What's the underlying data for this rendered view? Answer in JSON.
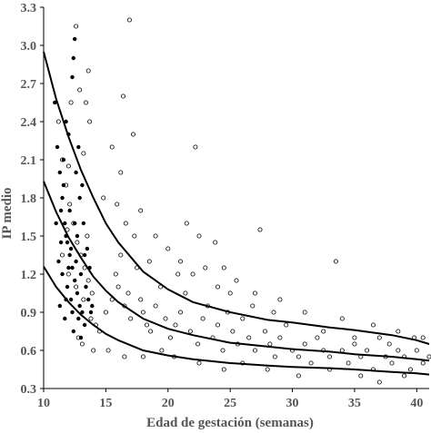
{
  "chart_data": {
    "type": "scatter",
    "title": "",
    "xlabel": "Edad de gestación (semanas)",
    "ylabel": "IP medio",
    "xlim": [
      10,
      41
    ],
    "ylim": [
      0.3,
      3.3
    ],
    "x_ticks": [
      10,
      15,
      20,
      25,
      30,
      35,
      40
    ],
    "y_ticks": [
      "0.3",
      "0.6",
      "0.9",
      "1.2",
      "1.5",
      "1.8",
      "2.1",
      "2.4",
      "2.7",
      "3.0",
      "3.3"
    ],
    "grid": false,
    "legend": "none",
    "series": [
      {
        "marker": "filled-circle",
        "color": "#000000",
        "points": [
          [
            10.9,
            2.55
          ],
          [
            11.1,
            2.2
          ],
          [
            11.3,
            2.0
          ],
          [
            11.5,
            1.8
          ],
          [
            11.7,
            1.6
          ],
          [
            11.9,
            1.45
          ],
          [
            12.1,
            1.35
          ],
          [
            12.3,
            1.25
          ],
          [
            12.5,
            1.15
          ],
          [
            12.7,
            1.05
          ],
          [
            12.9,
            0.95
          ],
          [
            13.1,
            0.9
          ],
          [
            12.4,
            2.9
          ],
          [
            12.5,
            3.05
          ],
          [
            12.3,
            2.75
          ],
          [
            11.8,
            2.4
          ],
          [
            12.0,
            2.3
          ],
          [
            11.6,
            1.9
          ],
          [
            11.4,
            1.7
          ],
          [
            11.8,
            1.5
          ],
          [
            12.2,
            1.4
          ],
          [
            12.6,
            1.3
          ],
          [
            13.0,
            1.2
          ],
          [
            13.4,
            1.1
          ],
          [
            11.2,
            1.3
          ],
          [
            11.5,
            1.2
          ],
          [
            11.9,
            1.1
          ],
          [
            12.2,
            1.0
          ],
          [
            12.8,
            0.85
          ],
          [
            13.3,
            0.8
          ],
          [
            13.6,
            1.0
          ],
          [
            13.8,
            0.9
          ],
          [
            13.5,
            1.4
          ],
          [
            13.2,
            1.6
          ],
          [
            12.9,
            1.8
          ],
          [
            12.6,
            2.0
          ],
          [
            12.8,
            2.2
          ],
          [
            13.1,
            1.9
          ],
          [
            11.3,
            0.95
          ],
          [
            11.7,
            0.85
          ],
          [
            12.4,
            0.75
          ],
          [
            13.0,
            0.7
          ],
          [
            11.0,
            1.6
          ],
          [
            11.4,
            1.45
          ],
          [
            12.0,
            1.25
          ],
          [
            12.7,
            1.5
          ],
          [
            13.3,
            1.35
          ],
          [
            13.7,
            1.25
          ],
          [
            12.1,
            1.7
          ],
          [
            11.6,
            2.1
          ],
          [
            12.5,
            1.6
          ],
          [
            13.9,
            0.95
          ],
          [
            11.8,
            1.0
          ],
          [
            12.3,
            0.9
          ]
        ]
      },
      {
        "marker": "open-circle",
        "color": "#000000",
        "points": [
          [
            11.2,
            2.4
          ],
          [
            11.5,
            2.1
          ],
          [
            11.8,
            1.9
          ],
          [
            12.1,
            1.75
          ],
          [
            12.4,
            1.6
          ],
          [
            12.7,
            1.45
          ],
          [
            13.0,
            1.35
          ],
          [
            13.3,
            1.25
          ],
          [
            13.6,
            1.15
          ],
          [
            13.9,
            1.05
          ],
          [
            12.6,
            3.15
          ],
          [
            12.9,
            2.65
          ],
          [
            13.4,
            2.55
          ],
          [
            13.6,
            2.8
          ],
          [
            13.7,
            2.4
          ],
          [
            11.5,
            1.35
          ],
          [
            12.0,
            1.2
          ],
          [
            12.6,
            1.1
          ],
          [
            13.2,
            1.0
          ],
          [
            13.8,
            0.85
          ],
          [
            14.2,
            0.8
          ],
          [
            14.5,
            0.75
          ],
          [
            15.0,
            0.9
          ],
          [
            15.5,
            1.0
          ],
          [
            15.8,
            1.2
          ],
          [
            16.0,
            1.1
          ],
          [
            16.2,
            1.35
          ],
          [
            16.5,
            0.95
          ],
          [
            16.8,
            1.05
          ],
          [
            17.0,
            0.85
          ],
          [
            16.9,
            3.2
          ],
          [
            16.4,
            2.6
          ],
          [
            17.2,
            2.3
          ],
          [
            15.9,
            1.75
          ],
          [
            16.6,
            1.6
          ],
          [
            17.3,
            1.5
          ],
          [
            17.5,
            1.25
          ],
          [
            17.8,
            1.0
          ],
          [
            18.0,
            0.9
          ],
          [
            18.3,
            0.8
          ],
          [
            18.6,
            0.75
          ],
          [
            19.0,
            0.95
          ],
          [
            19.4,
            1.1
          ],
          [
            19.8,
            0.85
          ],
          [
            20.2,
            0.7
          ],
          [
            20.6,
            0.8
          ],
          [
            21.0,
            0.9
          ],
          [
            21.4,
            1.05
          ],
          [
            21.8,
            0.75
          ],
          [
            22.2,
            2.2
          ],
          [
            22.4,
            0.65
          ],
          [
            22.8,
            0.85
          ],
          [
            23.2,
            0.95
          ],
          [
            23.6,
            0.7
          ],
          [
            24.0,
            0.8
          ],
          [
            24.4,
            0.6
          ],
          [
            24.8,
            0.9
          ],
          [
            25.2,
            0.75
          ],
          [
            25.6,
            0.65
          ],
          [
            26.0,
            0.85
          ],
          [
            26.5,
            0.7
          ],
          [
            27.0,
            0.6
          ],
          [
            27.4,
            1.55
          ],
          [
            27.8,
            0.75
          ],
          [
            28.2,
            0.65
          ],
          [
            28.6,
            0.55
          ],
          [
            29.0,
            0.7
          ],
          [
            29.5,
            0.8
          ],
          [
            30.0,
            0.6
          ],
          [
            30.5,
            0.55
          ],
          [
            31.0,
            0.65
          ],
          [
            31.5,
            0.5
          ],
          [
            32.0,
            0.7
          ],
          [
            32.5,
            0.6
          ],
          [
            33.0,
            0.55
          ],
          [
            33.5,
            1.3
          ],
          [
            34.0,
            0.6
          ],
          [
            34.5,
            0.5
          ],
          [
            35.0,
            0.65
          ],
          [
            35.5,
            0.55
          ],
          [
            36.0,
            0.6
          ],
          [
            36.5,
            0.45
          ],
          [
            37.0,
            0.7
          ],
          [
            37.5,
            0.55
          ],
          [
            38.0,
            0.5
          ],
          [
            38.5,
            0.6
          ],
          [
            39.0,
            0.55
          ],
          [
            39.5,
            0.45
          ],
          [
            40.0,
            0.6
          ],
          [
            40.5,
            0.5
          ],
          [
            21.0,
            1.3
          ],
          [
            22.0,
            1.2
          ],
          [
            23.0,
            1.25
          ],
          [
            24.0,
            1.1
          ],
          [
            25.0,
            1.05
          ],
          [
            20.0,
            1.4
          ],
          [
            19.0,
            1.5
          ],
          [
            18.5,
            1.3
          ],
          [
            17.8,
            1.7
          ],
          [
            16.2,
            2.0
          ],
          [
            15.5,
            2.2
          ],
          [
            14.8,
            1.8
          ],
          [
            20.5,
            0.55
          ],
          [
            22.5,
            0.5
          ],
          [
            24.5,
            0.45
          ],
          [
            26.0,
            0.5
          ],
          [
            28.0,
            0.45
          ],
          [
            30.5,
            0.4
          ],
          [
            33.0,
            0.45
          ],
          [
            35.5,
            0.4
          ],
          [
            37.0,
            0.35
          ],
          [
            39.0,
            0.4
          ],
          [
            31.0,
            0.9
          ],
          [
            34.0,
            0.85
          ],
          [
            36.5,
            0.8
          ],
          [
            38.5,
            0.75
          ],
          [
            40.5,
            0.7
          ],
          [
            29.0,
            1.0
          ],
          [
            27.0,
            1.05
          ],
          [
            25.5,
            1.15
          ],
          [
            12.2,
            2.55
          ],
          [
            12.0,
            2.05
          ],
          [
            13.2,
            2.15
          ],
          [
            11.9,
            1.55
          ],
          [
            13.5,
            1.5
          ],
          [
            12.8,
            0.7
          ],
          [
            13.1,
            0.65
          ],
          [
            14.0,
            0.6
          ],
          [
            15.2,
            0.6
          ],
          [
            16.5,
            0.55
          ],
          [
            18.0,
            0.55
          ],
          [
            19.5,
            0.6
          ],
          [
            22.5,
            1.5
          ],
          [
            23.8,
            1.45
          ],
          [
            21.5,
            1.6
          ],
          [
            20.8,
            1.2
          ],
          [
            26.8,
            0.95
          ],
          [
            28.5,
            0.9
          ],
          [
            32.5,
            0.75
          ],
          [
            35.0,
            0.7
          ],
          [
            37.8,
            0.65
          ],
          [
            39.8,
            0.7
          ],
          [
            41.0,
            0.55
          ],
          [
            24.5,
            1.25
          ]
        ]
      }
    ],
    "reference_curves": [
      {
        "name": "upper",
        "points": [
          [
            10,
            2.95
          ],
          [
            11,
            2.58
          ],
          [
            12,
            2.28
          ],
          [
            13,
            2.02
          ],
          [
            14,
            1.8
          ],
          [
            15,
            1.6
          ],
          [
            16,
            1.45
          ],
          [
            18,
            1.22
          ],
          [
            20,
            1.08
          ],
          [
            22,
            0.98
          ],
          [
            25,
            0.9
          ],
          [
            28,
            0.84
          ],
          [
            30,
            0.82
          ],
          [
            33,
            0.78
          ],
          [
            35,
            0.76
          ],
          [
            38,
            0.72
          ],
          [
            40,
            0.68
          ],
          [
            41,
            0.65
          ]
        ]
      },
      {
        "name": "median",
        "points": [
          [
            10,
            1.93
          ],
          [
            11,
            1.69
          ],
          [
            12,
            1.49
          ],
          [
            13,
            1.33
          ],
          [
            14,
            1.18
          ],
          [
            15,
            1.07
          ],
          [
            16,
            0.98
          ],
          [
            18,
            0.85
          ],
          [
            20,
            0.77
          ],
          [
            22,
            0.72
          ],
          [
            25,
            0.66
          ],
          [
            28,
            0.63
          ],
          [
            30,
            0.61
          ],
          [
            33,
            0.59
          ],
          [
            35,
            0.57
          ],
          [
            38,
            0.55
          ],
          [
            40,
            0.53
          ],
          [
            41,
            0.52
          ]
        ]
      },
      {
        "name": "lower",
        "points": [
          [
            10,
            1.26
          ],
          [
            11,
            1.1
          ],
          [
            12,
            0.98
          ],
          [
            13,
            0.88
          ],
          [
            14,
            0.8
          ],
          [
            15,
            0.73
          ],
          [
            16,
            0.68
          ],
          [
            18,
            0.6
          ],
          [
            20,
            0.56
          ],
          [
            22,
            0.53
          ],
          [
            25,
            0.5
          ],
          [
            28,
            0.48
          ],
          [
            30,
            0.47
          ],
          [
            33,
            0.46
          ],
          [
            35,
            0.45
          ],
          [
            38,
            0.43
          ],
          [
            40,
            0.42
          ],
          [
            41,
            0.41
          ]
        ]
      }
    ]
  }
}
